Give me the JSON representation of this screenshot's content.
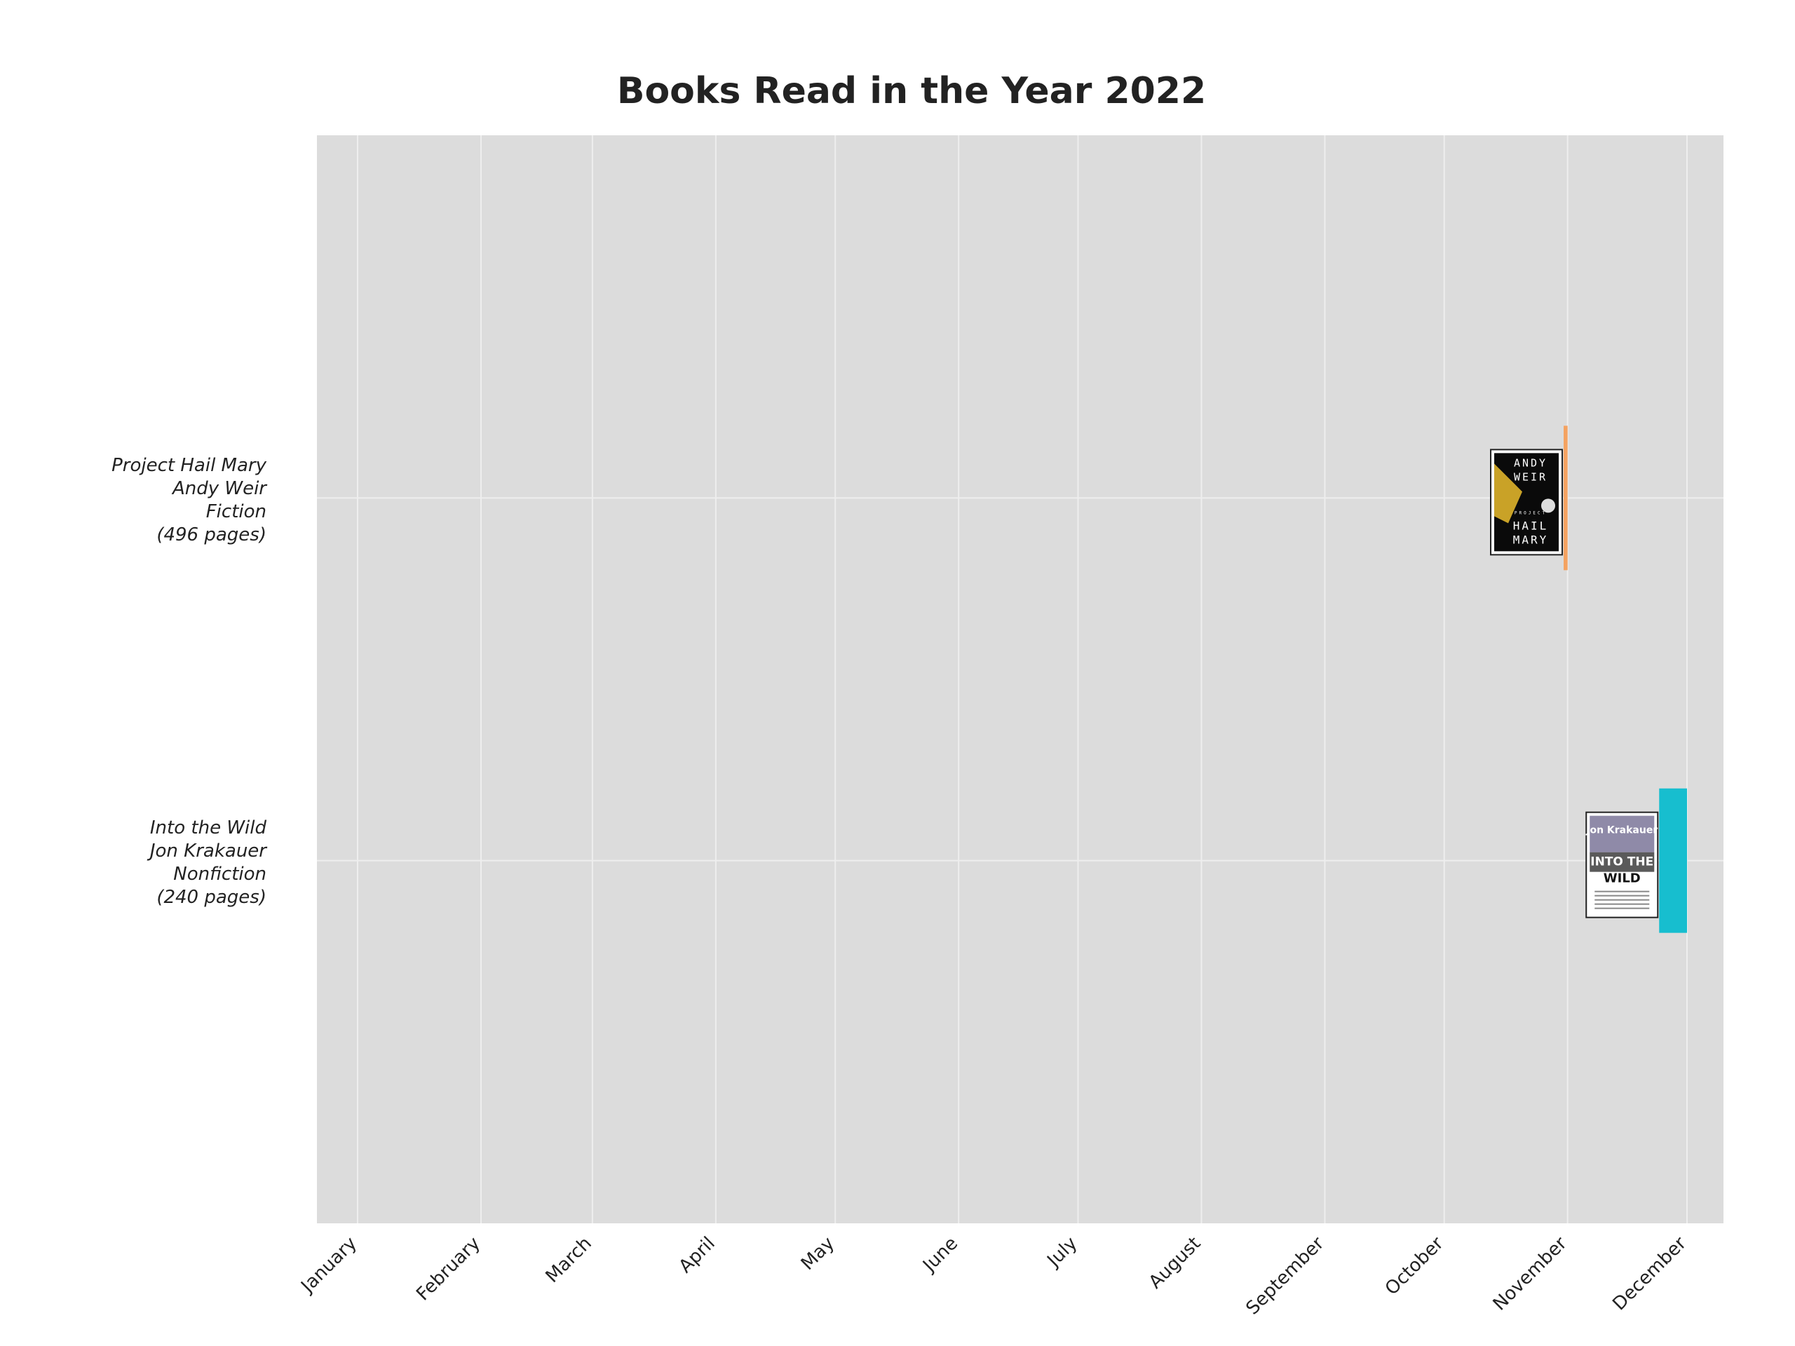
{
  "chart_data": {
    "type": "gantt",
    "title": "Books Read in the Year 2022",
    "xlabel": "",
    "ylabel": "",
    "x_ticks": [
      "January",
      "February",
      "March",
      "April",
      "May",
      "June",
      "July",
      "August",
      "September",
      "October",
      "November",
      "December"
    ],
    "grid": true,
    "books": [
      {
        "title": "Project Hail Mary",
        "author": "Andy Weir",
        "genre": "Fiction",
        "pages_label": "(496 pages)",
        "start": "2022-10-31",
        "end": "2022-11-01",
        "color": "#f4a261",
        "cover_lines": [
          "ANDY",
          "WEIR",
          "PROJECT",
          "HAIL",
          "MARY"
        ]
      },
      {
        "title": "Into the Wild",
        "author": "Jon Krakauer",
        "genre": "Nonfiction",
        "pages_label": "(240 pages)",
        "start": "2022-11-24",
        "end": "2022-12-01",
        "color": "#17becf",
        "cover_lines": [
          "Jon Krakauer",
          "INTO THE",
          "WILD"
        ]
      }
    ],
    "colors": {
      "background": "#dcdcdc",
      "grid": "#eeeeee",
      "text": "#222222"
    }
  }
}
